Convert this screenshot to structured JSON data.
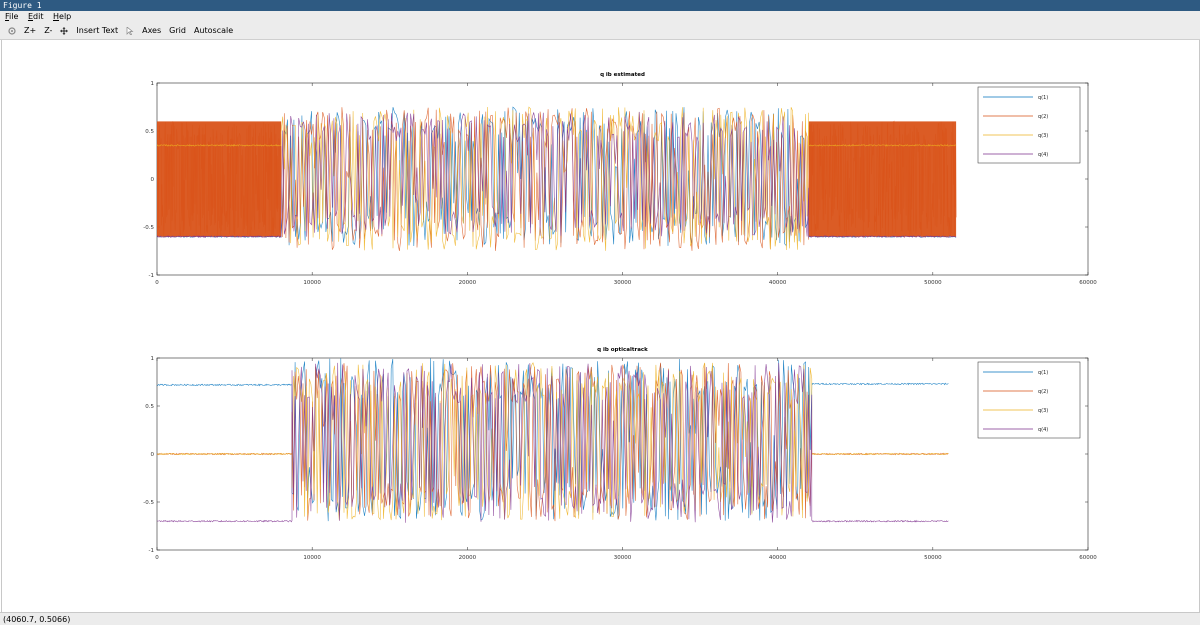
{
  "window": {
    "title": "Figure 1"
  },
  "menu": {
    "items": [
      "File",
      "Edit",
      "Help"
    ]
  },
  "toolbar": {
    "zoom_in": "Z+",
    "zoom_out": "Z-",
    "insert_text": "Insert Text",
    "axes": "Axes",
    "grid": "Grid",
    "autoscale": "Autoscale"
  },
  "status": {
    "coords": "(4060.7, 0.5066)"
  },
  "colors": {
    "q1": "#0072bd",
    "q2": "#d95319",
    "q3": "#edb120",
    "q4": "#7e2f8e"
  },
  "chart_data": [
    {
      "type": "line",
      "title": "q ib estimated",
      "xlim": [
        0,
        60000
      ],
      "ylim": [
        -1,
        1
      ],
      "xticks": [
        0,
        10000,
        20000,
        30000,
        40000,
        50000,
        60000
      ],
      "yticks": [
        -1,
        -0.5,
        0,
        0.5,
        1
      ],
      "ytick_labels": [
        "-1",
        "-0.5",
        "0",
        "0.5",
        "1"
      ],
      "legend": "top-right",
      "series": [
        {
          "name": "q(1)",
          "segments": [
            {
              "x": [
                0,
                8000
              ],
              "value": -0.6
            },
            {
              "x": [
                8000,
                42000
              ],
              "range": [
                -0.7,
                0.75
              ]
            },
            {
              "x": [
                42000,
                51500
              ],
              "value": -0.6
            }
          ]
        },
        {
          "name": "q(2)",
          "segments": [
            {
              "x": [
                0,
                8000
              ],
              "range": [
                -0.6,
                0.6
              ]
            },
            {
              "x": [
                8000,
                42000
              ],
              "range": [
                -0.75,
                0.75
              ]
            },
            {
              "x": [
                42000,
                51500
              ],
              "range": [
                -0.6,
                0.6
              ]
            }
          ]
        },
        {
          "name": "q(3)",
          "segments": [
            {
              "x": [
                0,
                8000
              ],
              "value": 0.35
            },
            {
              "x": [
                8000,
                42000
              ],
              "range": [
                -0.75,
                0.75
              ]
            },
            {
              "x": [
                42000,
                51500
              ],
              "value": 0.35
            }
          ]
        },
        {
          "name": "q(4)",
          "segments": [
            {
              "x": [
                0,
                8000
              ],
              "value": -0.6
            },
            {
              "x": [
                8000,
                42000
              ],
              "range": [
                -0.6,
                0.7
              ]
            },
            {
              "x": [
                42000,
                51500
              ],
              "value": -0.6
            }
          ]
        }
      ]
    },
    {
      "type": "line",
      "title": "q ib opticaltrack",
      "xlim": [
        0,
        60000
      ],
      "ylim": [
        -1,
        1
      ],
      "xticks": [
        0,
        10000,
        20000,
        30000,
        40000,
        50000,
        60000
      ],
      "yticks": [
        -1,
        -0.5,
        0,
        0.5,
        1
      ],
      "ytick_labels": [
        "-1",
        "-0.5",
        "0",
        "0.5",
        "1"
      ],
      "legend": "top-right",
      "series": [
        {
          "name": "q(1)",
          "segments": [
            {
              "x": [
                0,
                8700
              ],
              "value": 0.72
            },
            {
              "x": [
                8700,
                42200
              ],
              "range": [
                -0.7,
                1.0
              ]
            },
            {
              "x": [
                42200,
                51000
              ],
              "value": 0.73
            }
          ]
        },
        {
          "name": "q(2)",
          "segments": [
            {
              "x": [
                0,
                8700
              ],
              "value": 0.0
            },
            {
              "x": [
                8700,
                42200
              ],
              "range": [
                -0.7,
                0.95
              ]
            },
            {
              "x": [
                42200,
                51000
              ],
              "value": 0.0
            }
          ]
        },
        {
          "name": "q(3)",
          "segments": [
            {
              "x": [
                0,
                8700
              ],
              "value": 0.0
            },
            {
              "x": [
                8700,
                42200
              ],
              "range": [
                -0.7,
                0.95
              ]
            },
            {
              "x": [
                42200,
                51000
              ],
              "value": 0.0
            }
          ]
        },
        {
          "name": "q(4)",
          "segments": [
            {
              "x": [
                0,
                8700
              ],
              "value": -0.7
            },
            {
              "x": [
                8700,
                42200
              ],
              "range": [
                -0.72,
                0.95
              ]
            },
            {
              "x": [
                42200,
                51000
              ],
              "value": -0.7
            }
          ]
        }
      ]
    }
  ]
}
